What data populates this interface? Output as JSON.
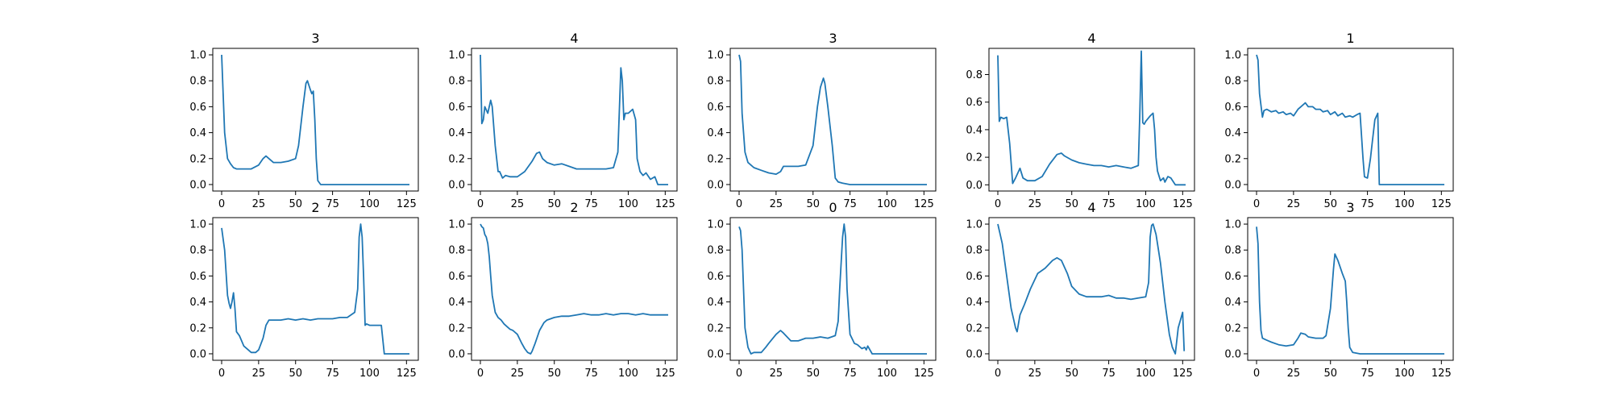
{
  "chart_data": [
    {
      "type": "line",
      "title": "3",
      "xlim": [
        -6,
        133
      ],
      "ylim": [
        -0.05,
        1.05
      ],
      "xticks": [
        0,
        25,
        50,
        75,
        100,
        125
      ],
      "yticks": [
        0,
        0.2,
        0.4,
        0.6,
        0.8,
        1.0
      ],
      "xtick_labels": [
        "0",
        "25",
        "50",
        "75",
        "100",
        "125"
      ],
      "ytick_labels": [
        "0.0",
        "0.2",
        "0.4",
        "0.6",
        "0.8",
        "1.0"
      ],
      "line_color": "#1f77b4",
      "x": [
        0,
        2,
        4,
        6,
        8,
        10,
        15,
        20,
        25,
        28,
        30,
        32,
        35,
        40,
        45,
        50,
        52,
        55,
        57,
        58,
        60,
        61,
        62,
        63,
        64,
        65,
        67,
        70,
        80,
        100,
        127
      ],
      "y": [
        1.0,
        0.4,
        0.2,
        0.16,
        0.13,
        0.12,
        0.12,
        0.12,
        0.15,
        0.2,
        0.22,
        0.2,
        0.17,
        0.17,
        0.18,
        0.2,
        0.3,
        0.6,
        0.78,
        0.8,
        0.73,
        0.7,
        0.72,
        0.5,
        0.2,
        0.03,
        0.0,
        0.0,
        0.0,
        0.0,
        0.0
      ]
    },
    {
      "type": "line",
      "title": "4",
      "xlim": [
        -6,
        133
      ],
      "ylim": [
        -0.05,
        1.05
      ],
      "xticks": [
        0,
        25,
        50,
        75,
        100,
        125
      ],
      "yticks": [
        0,
        0.2,
        0.4,
        0.6,
        0.8,
        1.0
      ],
      "xtick_labels": [
        "0",
        "25",
        "50",
        "75",
        "100",
        "125"
      ],
      "ytick_labels": [
        "0.0",
        "0.2",
        "0.4",
        "0.6",
        "0.8",
        "1.0"
      ],
      "line_color": "#1f77b4",
      "x": [
        0,
        1,
        2,
        3,
        5,
        7,
        8,
        10,
        12,
        13,
        15,
        17,
        20,
        25,
        30,
        35,
        38,
        40,
        42,
        45,
        50,
        55,
        60,
        65,
        70,
        75,
        80,
        85,
        90,
        93,
        95,
        96,
        97,
        98,
        100,
        103,
        105,
        106,
        108,
        110,
        112,
        115,
        118,
        120,
        127
      ],
      "y": [
        1.0,
        0.47,
        0.5,
        0.6,
        0.55,
        0.65,
        0.6,
        0.3,
        0.1,
        0.1,
        0.05,
        0.07,
        0.06,
        0.06,
        0.1,
        0.18,
        0.24,
        0.25,
        0.2,
        0.17,
        0.15,
        0.16,
        0.14,
        0.12,
        0.12,
        0.12,
        0.12,
        0.12,
        0.13,
        0.25,
        0.9,
        0.8,
        0.5,
        0.55,
        0.55,
        0.58,
        0.5,
        0.2,
        0.1,
        0.07,
        0.09,
        0.04,
        0.06,
        0.0,
        0.0
      ]
    },
    {
      "type": "line",
      "title": "3",
      "xlim": [
        -6,
        133
      ],
      "ylim": [
        -0.05,
        1.05
      ],
      "xticks": [
        0,
        25,
        50,
        75,
        100,
        125
      ],
      "yticks": [
        0,
        0.2,
        0.4,
        0.6,
        0.8,
        1.0
      ],
      "xtick_labels": [
        "0",
        "25",
        "50",
        "75",
        "100",
        "125"
      ],
      "ytick_labels": [
        "0.0",
        "0.2",
        "0.4",
        "0.6",
        "0.8",
        "1.0"
      ],
      "line_color": "#1f77b4",
      "x": [
        0,
        1,
        2,
        4,
        6,
        8,
        10,
        15,
        20,
        25,
        28,
        30,
        35,
        40,
        45,
        50,
        53,
        55,
        57,
        58,
        60,
        63,
        65,
        67,
        70,
        75,
        80,
        100,
        127
      ],
      "y": [
        1.0,
        0.95,
        0.55,
        0.25,
        0.17,
        0.15,
        0.13,
        0.11,
        0.09,
        0.08,
        0.1,
        0.14,
        0.14,
        0.14,
        0.15,
        0.3,
        0.6,
        0.75,
        0.82,
        0.78,
        0.6,
        0.3,
        0.05,
        0.02,
        0.01,
        0.0,
        0.0,
        0.0,
        0.0
      ]
    },
    {
      "type": "line",
      "title": "4",
      "xlim": [
        -6,
        133
      ],
      "ylim": [
        -0.045,
        0.99
      ],
      "xticks": [
        0,
        25,
        50,
        75,
        100,
        125
      ],
      "yticks": [
        0,
        0.2,
        0.4,
        0.6,
        0.8
      ],
      "xtick_labels": [
        "0",
        "25",
        "50",
        "75",
        "100",
        "125"
      ],
      "ytick_labels": [
        "0.0",
        "0.2",
        "0.4",
        "0.6",
        "0.8"
      ],
      "line_color": "#1f77b4",
      "x": [
        0,
        1,
        2,
        4,
        6,
        8,
        10,
        12,
        15,
        17,
        20,
        25,
        30,
        35,
        40,
        43,
        45,
        50,
        55,
        60,
        65,
        70,
        75,
        80,
        85,
        90,
        95,
        96,
        97,
        98,
        99,
        100,
        103,
        105,
        106,
        107,
        108,
        110,
        112,
        113,
        115,
        117,
        120,
        127
      ],
      "y": [
        0.94,
        0.46,
        0.49,
        0.48,
        0.49,
        0.3,
        0.01,
        0.05,
        0.12,
        0.05,
        0.03,
        0.03,
        0.06,
        0.15,
        0.22,
        0.23,
        0.21,
        0.18,
        0.16,
        0.15,
        0.14,
        0.14,
        0.13,
        0.14,
        0.13,
        0.12,
        0.14,
        0.5,
        0.97,
        0.45,
        0.44,
        0.46,
        0.5,
        0.52,
        0.4,
        0.2,
        0.1,
        0.03,
        0.05,
        0.02,
        0.06,
        0.05,
        0.0,
        0.0
      ]
    },
    {
      "type": "line",
      "title": "1",
      "xlim": [
        -6,
        133
      ],
      "ylim": [
        -0.05,
        1.05
      ],
      "xticks": [
        0,
        25,
        50,
        75,
        100,
        125
      ],
      "yticks": [
        0,
        0.2,
        0.4,
        0.6,
        0.8,
        1.0
      ],
      "xtick_labels": [
        "0",
        "25",
        "50",
        "75",
        "100",
        "125"
      ],
      "ytick_labels": [
        "0.0",
        "0.2",
        "0.4",
        "0.6",
        "0.8",
        "1.0"
      ],
      "line_color": "#1f77b4",
      "x": [
        0,
        1,
        2,
        4,
        5,
        7,
        10,
        13,
        15,
        18,
        20,
        23,
        25,
        28,
        30,
        33,
        35,
        38,
        40,
        43,
        45,
        48,
        50,
        53,
        55,
        58,
        60,
        63,
        65,
        68,
        70,
        72,
        73,
        75,
        77,
        78,
        80,
        82,
        83,
        100,
        127
      ],
      "y": [
        1.0,
        0.96,
        0.7,
        0.52,
        0.57,
        0.58,
        0.56,
        0.57,
        0.55,
        0.56,
        0.54,
        0.55,
        0.53,
        0.58,
        0.6,
        0.63,
        0.6,
        0.6,
        0.58,
        0.58,
        0.56,
        0.57,
        0.54,
        0.56,
        0.53,
        0.55,
        0.52,
        0.53,
        0.52,
        0.54,
        0.55,
        0.2,
        0.06,
        0.05,
        0.2,
        0.3,
        0.5,
        0.55,
        0.0,
        0.0,
        0.0
      ]
    },
    {
      "type": "line",
      "title": "2",
      "xlim": [
        -6,
        133
      ],
      "ylim": [
        -0.05,
        1.05
      ],
      "xticks": [
        0,
        25,
        50,
        75,
        100,
        125
      ],
      "yticks": [
        0,
        0.2,
        0.4,
        0.6,
        0.8,
        1.0
      ],
      "xtick_labels": [
        "0",
        "25",
        "50",
        "75",
        "100",
        "125"
      ],
      "ytick_labels": [
        "0.0",
        "0.2",
        "0.4",
        "0.6",
        "0.8",
        "1.0"
      ],
      "line_color": "#1f77b4",
      "x": [
        0,
        2,
        4,
        5,
        6,
        7,
        8,
        9,
        10,
        12,
        15,
        18,
        20,
        23,
        25,
        28,
        30,
        32,
        35,
        40,
        45,
        50,
        55,
        60,
        65,
        70,
        75,
        80,
        85,
        90,
        92,
        93,
        94,
        95,
        96,
        97,
        98,
        100,
        105,
        108,
        110,
        115,
        127
      ],
      "y": [
        0.97,
        0.8,
        0.45,
        0.39,
        0.35,
        0.4,
        0.47,
        0.35,
        0.17,
        0.14,
        0.06,
        0.03,
        0.01,
        0.01,
        0.03,
        0.12,
        0.22,
        0.26,
        0.26,
        0.26,
        0.27,
        0.26,
        0.27,
        0.26,
        0.27,
        0.27,
        0.27,
        0.28,
        0.28,
        0.32,
        0.5,
        0.9,
        1.0,
        0.9,
        0.6,
        0.22,
        0.23,
        0.22,
        0.22,
        0.22,
        0.0,
        0.0,
        0.0
      ]
    },
    {
      "type": "line",
      "title": "2",
      "xlim": [
        -6,
        133
      ],
      "ylim": [
        -0.05,
        1.05
      ],
      "xticks": [
        0,
        25,
        50,
        75,
        100,
        125
      ],
      "yticks": [
        0,
        0.2,
        0.4,
        0.6,
        0.8,
        1.0
      ],
      "xtick_labels": [
        "0",
        "25",
        "50",
        "75",
        "100",
        "125"
      ],
      "ytick_labels": [
        "0.0",
        "0.2",
        "0.4",
        "0.6",
        "0.8",
        "1.0"
      ],
      "line_color": "#1f77b4",
      "x": [
        0,
        1,
        2,
        3,
        4,
        5,
        6,
        7,
        8,
        10,
        12,
        14,
        16,
        18,
        20,
        22,
        25,
        28,
        30,
        32,
        34,
        35,
        37,
        40,
        43,
        45,
        50,
        55,
        60,
        65,
        70,
        75,
        80,
        85,
        90,
        95,
        100,
        105,
        110,
        115,
        120,
        125,
        127
      ],
      "y": [
        1.0,
        0.98,
        0.97,
        0.92,
        0.9,
        0.85,
        0.75,
        0.6,
        0.45,
        0.32,
        0.28,
        0.26,
        0.23,
        0.21,
        0.19,
        0.18,
        0.15,
        0.08,
        0.04,
        0.01,
        0.0,
        0.02,
        0.08,
        0.18,
        0.24,
        0.26,
        0.28,
        0.29,
        0.29,
        0.3,
        0.31,
        0.3,
        0.3,
        0.31,
        0.3,
        0.31,
        0.31,
        0.3,
        0.31,
        0.3,
        0.3,
        0.3,
        0.3
      ]
    },
    {
      "type": "line",
      "title": "0",
      "xlim": [
        -6,
        133
      ],
      "ylim": [
        -0.05,
        1.05
      ],
      "xticks": [
        0,
        25,
        50,
        75,
        100,
        125
      ],
      "yticks": [
        0,
        0.2,
        0.4,
        0.6,
        0.8,
        1.0
      ],
      "xtick_labels": [
        "0",
        "25",
        "50",
        "75",
        "100",
        "125"
      ],
      "ytick_labels": [
        "0.0",
        "0.2",
        "0.4",
        "0.6",
        "0.8",
        "1.0"
      ],
      "line_color": "#1f77b4",
      "x": [
        0,
        1,
        2,
        3,
        4,
        6,
        8,
        10,
        15,
        18,
        20,
        25,
        28,
        30,
        35,
        40,
        45,
        50,
        55,
        60,
        65,
        67,
        68,
        70,
        71,
        72,
        73,
        75,
        78,
        80,
        83,
        85,
        86,
        87,
        90,
        100,
        127
      ],
      "y": [
        0.98,
        0.95,
        0.8,
        0.5,
        0.2,
        0.05,
        0.0,
        0.01,
        0.01,
        0.05,
        0.08,
        0.15,
        0.18,
        0.16,
        0.1,
        0.1,
        0.12,
        0.12,
        0.13,
        0.12,
        0.14,
        0.25,
        0.5,
        0.9,
        1.0,
        0.9,
        0.5,
        0.15,
        0.08,
        0.07,
        0.04,
        0.05,
        0.03,
        0.06,
        0.0,
        0.0,
        0.0
      ]
    },
    {
      "type": "line",
      "title": "4",
      "xlim": [
        -6,
        133
      ],
      "ylim": [
        -0.05,
        1.05
      ],
      "xticks": [
        0,
        25,
        50,
        75,
        100,
        125
      ],
      "yticks": [
        0,
        0.2,
        0.4,
        0.6,
        0.8,
        1.0
      ],
      "xtick_labels": [
        "0",
        "25",
        "50",
        "75",
        "100",
        "125"
      ],
      "ytick_labels": [
        "0.0",
        "0.2",
        "0.4",
        "0.6",
        "0.8",
        "1.0"
      ],
      "line_color": "#1f77b4",
      "x": [
        0,
        3,
        6,
        9,
        12,
        13,
        15,
        18,
        22,
        27,
        32,
        37,
        40,
        43,
        47,
        50,
        55,
        60,
        65,
        70,
        75,
        80,
        85,
        90,
        95,
        100,
        102,
        103,
        104,
        105,
        107,
        110,
        113,
        116,
        118,
        120,
        122,
        124,
        125,
        126
      ],
      "y": [
        1.0,
        0.85,
        0.6,
        0.35,
        0.2,
        0.17,
        0.3,
        0.38,
        0.5,
        0.62,
        0.66,
        0.72,
        0.74,
        0.72,
        0.62,
        0.52,
        0.46,
        0.44,
        0.44,
        0.44,
        0.45,
        0.43,
        0.43,
        0.42,
        0.43,
        0.44,
        0.55,
        0.9,
        0.99,
        1.0,
        0.92,
        0.7,
        0.4,
        0.15,
        0.05,
        0.0,
        0.2,
        0.28,
        0.32,
        0.02
      ]
    },
    {
      "type": "line",
      "title": "3",
      "xlim": [
        -6,
        133
      ],
      "ylim": [
        -0.05,
        1.05
      ],
      "xticks": [
        0,
        25,
        50,
        75,
        100,
        125
      ],
      "yticks": [
        0,
        0.2,
        0.4,
        0.6,
        0.8,
        1.0
      ],
      "xtick_labels": [
        "0",
        "25",
        "50",
        "75",
        "100",
        "125"
      ],
      "ytick_labels": [
        "0.0",
        "0.2",
        "0.4",
        "0.6",
        "0.8",
        "1.0"
      ],
      "line_color": "#1f77b4",
      "x": [
        0,
        1,
        2,
        3,
        4,
        6,
        8,
        10,
        15,
        20,
        25,
        28,
        30,
        33,
        35,
        40,
        45,
        47,
        50,
        52,
        53,
        55,
        58,
        60,
        61,
        62,
        63,
        65,
        70,
        100,
        127
      ],
      "y": [
        0.98,
        0.85,
        0.4,
        0.18,
        0.12,
        0.11,
        0.1,
        0.09,
        0.07,
        0.06,
        0.07,
        0.12,
        0.16,
        0.15,
        0.13,
        0.12,
        0.12,
        0.14,
        0.35,
        0.65,
        0.77,
        0.72,
        0.62,
        0.56,
        0.4,
        0.2,
        0.05,
        0.01,
        0.0,
        0.0,
        0.0
      ]
    }
  ]
}
